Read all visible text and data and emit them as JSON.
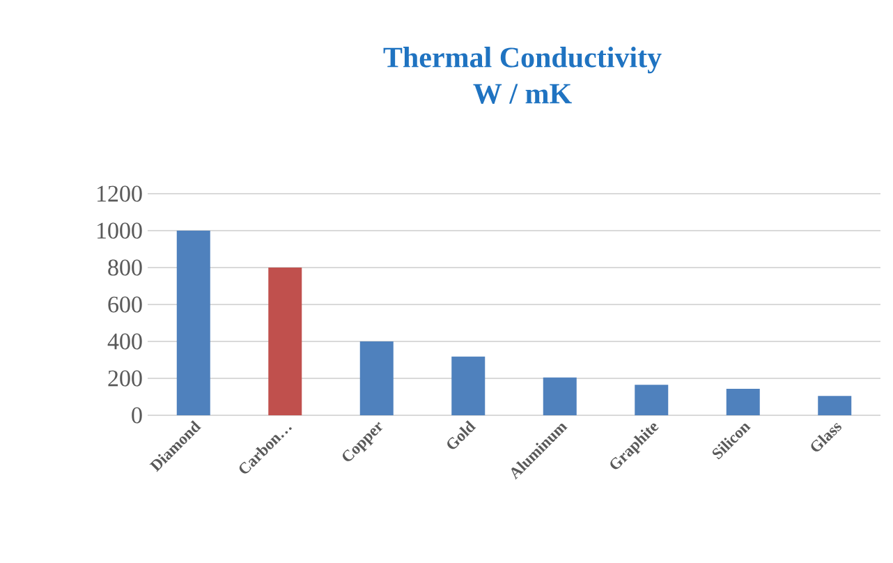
{
  "chart_data": {
    "type": "bar",
    "title": "Thermal Conductivity",
    "subtitle": "W / mK",
    "categories": [
      "Diamond",
      "Carbon…",
      "Copper",
      "Gold",
      "Aluminum",
      "Graphite",
      "Silicon",
      "Glass"
    ],
    "values": [
      1000,
      800,
      400,
      318,
      205,
      165,
      143,
      105
    ],
    "colors": [
      "#4f81bd",
      "#c0504d",
      "#4f81bd",
      "#4f81bd",
      "#4f81bd",
      "#4f81bd",
      "#4f81bd",
      "#4f81bd"
    ],
    "ylim": [
      0,
      1200
    ],
    "yticks": [
      0,
      200,
      400,
      600,
      800,
      1000,
      1200
    ],
    "grid": "y"
  }
}
